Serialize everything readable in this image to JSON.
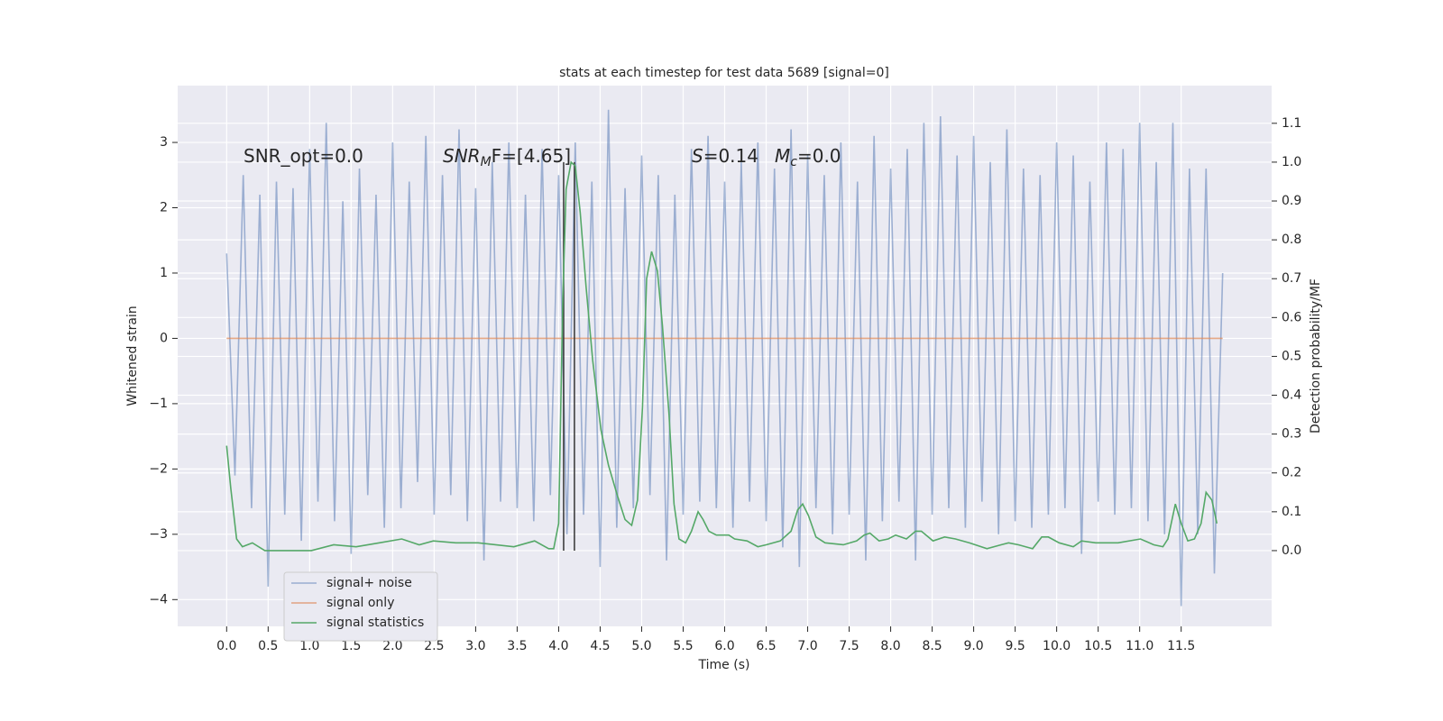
{
  "chart_data": {
    "type": "line",
    "title": "stats at each timestep for test data 5689 [signal=0]",
    "xlabel": "Time (s)",
    "ylabel": "Whitened strain",
    "y2label": "Detection probability/MF",
    "annotations": [
      {
        "text": "SNR_opt=0.0"
      },
      {
        "text": "SNR",
        "sub": "M",
        "rest": "F=[4.65]"
      },
      {
        "text": "S",
        "rest": "=0.14"
      },
      {
        "text": "M",
        "sub": "c",
        "rest": "=0.0"
      }
    ],
    "xlim": [
      -0.59,
      12.59
    ],
    "ylim": [
      -4.41,
      3.87
    ],
    "y2lim": [
      -0.195,
      1.197
    ],
    "xticks": [
      {
        "value": 0,
        "label": "0.0"
      },
      0.5,
      {
        "value": 1,
        "label": "1.0"
      },
      1.5,
      {
        "value": 2,
        "label": "2.0"
      },
      2.5,
      {
        "value": 3,
        "label": "3.0"
      },
      3.5,
      {
        "value": 4,
        "label": "4.0"
      },
      4.5,
      {
        "value": 5,
        "label": "5.0"
      },
      5.5,
      {
        "value": 6,
        "label": "6.0"
      },
      6.5,
      {
        "value": 7,
        "label": "7.0"
      },
      7.5,
      {
        "value": 8,
        "label": "8.0"
      },
      8.5,
      {
        "value": 9,
        "label": "9.0"
      },
      9.5,
      {
        "value": 10,
        "label": "10.0"
      },
      10.5,
      {
        "value": 11,
        "label": "11.0"
      },
      11.5
    ],
    "yticks": [
      {
        "value": -4,
        "label": "−4"
      },
      {
        "value": -3,
        "label": "−3"
      },
      {
        "value": -2,
        "label": "−2"
      },
      {
        "value": -1,
        "label": "−1"
      },
      0,
      1,
      2,
      3
    ],
    "y2ticks": [
      {
        "value": 0,
        "label": "0.0"
      },
      0.1,
      0.2,
      0.3,
      0.4,
      0.5,
      0.6,
      0.7,
      0.8,
      0.9,
      {
        "value": 1,
        "label": "1.0"
      },
      1.1
    ],
    "grid": true,
    "legend": "lower left",
    "vlines": {
      "x": [
        4.06,
        4.19
      ],
      "y": [
        0,
        1
      ],
      "color": "#333333"
    },
    "series": [
      {
        "name": "signal+ noise",
        "color": "#4c72b0",
        "alpha": 0.5,
        "x": [
          0,
          0.1,
          0.2,
          0.3,
          0.4,
          0.5,
          0.6,
          0.7,
          0.8,
          0.9,
          1,
          1.1,
          1.2,
          1.3,
          1.4,
          1.5,
          1.6,
          1.7,
          1.8,
          1.9,
          2,
          2.1,
          2.2,
          2.3,
          2.4,
          2.5,
          2.6,
          2.7,
          2.8,
          2.9,
          3,
          3.1,
          3.2,
          3.3,
          3.4,
          3.5,
          3.6,
          3.7,
          3.8,
          3.9,
          4,
          4.1,
          4.2,
          4.3,
          4.4,
          4.5,
          4.6,
          4.7,
          4.8,
          4.9,
          5,
          5.1,
          5.2,
          5.3,
          5.4,
          5.5,
          5.6,
          5.7,
          5.8,
          5.9,
          6,
          6.1,
          6.2,
          6.3,
          6.4,
          6.5,
          6.6,
          6.7,
          6.8,
          6.9,
          7,
          7.1,
          7.2,
          7.3,
          7.4,
          7.5,
          7.6,
          7.7,
          7.8,
          7.9,
          8,
          8.1,
          8.2,
          8.3,
          8.4,
          8.5,
          8.6,
          8.7,
          8.8,
          8.9,
          9,
          9.1,
          9.2,
          9.3,
          9.4,
          9.5,
          9.6,
          9.7,
          9.8,
          9.9,
          10,
          10.1,
          10.2,
          10.3,
          10.4,
          10.5,
          10.6,
          10.7,
          10.8,
          10.9,
          11,
          11.1,
          11.2,
          11.3,
          11.4,
          11.5,
          11.6,
          11.7,
          11.8,
          11.9,
          12
        ],
        "values": [
          1.3,
          -2.1,
          2.5,
          -2.6,
          2.2,
          -3.8,
          2.4,
          -2.7,
          2.3,
          -3.1,
          2.9,
          -2.5,
          3.3,
          -2.8,
          2.1,
          -3.3,
          2.6,
          -2.4,
          2.2,
          -2.9,
          3.0,
          -2.6,
          2.4,
          -2.2,
          3.1,
          -2.7,
          2.5,
          -2.4,
          3.2,
          -2.8,
          2.3,
          -3.4,
          2.7,
          -2.5,
          3.0,
          -2.6,
          2.2,
          -2.8,
          2.9,
          -2.4,
          2.5,
          -3.0,
          3.0,
          -2.7,
          2.4,
          -3.5,
          3.5,
          -2.9,
          2.3,
          -2.6,
          2.8,
          -2.4,
          2.5,
          -3.4,
          2.2,
          -2.7,
          2.9,
          -2.5,
          3.1,
          -2.6,
          2.4,
          -2.9,
          2.7,
          -2.5,
          3.0,
          -2.8,
          2.6,
          -3.2,
          3.2,
          -3.5,
          2.8,
          -2.6,
          2.5,
          -3.0,
          3.0,
          -2.7,
          2.4,
          -3.4,
          3.1,
          -2.8,
          2.6,
          -2.5,
          2.9,
          -3.4,
          3.3,
          -2.7,
          3.4,
          -2.6,
          2.8,
          -2.9,
          3.1,
          -2.5,
          2.7,
          -3.0,
          3.2,
          -2.8,
          2.6,
          -2.9,
          2.5,
          -2.7,
          3.0,
          -2.6,
          2.8,
          -3.3,
          2.4,
          -2.5,
          3.0,
          -2.7,
          2.9,
          -2.6,
          3.3,
          -2.8,
          2.7,
          -3.0,
          3.3,
          -4.1,
          2.6,
          -3.0,
          2.6,
          -3.6,
          1.0
        ]
      },
      {
        "name": "signal only",
        "color": "#dd8452",
        "alpha": 0.7,
        "x": [
          0,
          12
        ],
        "values": [
          0,
          0
        ]
      },
      {
        "name": "signal statistics",
        "color": "#55a868",
        "alpha": 1,
        "axis": "y2",
        "x": [
          0,
          0.05,
          0.12,
          0.19,
          0.31,
          0.46,
          0.75,
          1.02,
          1.29,
          1.56,
          1.84,
          2.11,
          2.32,
          2.49,
          2.76,
          3.03,
          3.46,
          3.71,
          3.88,
          3.94,
          4.0,
          4.05,
          4.09,
          4.15,
          4.2,
          4.26,
          4.33,
          4.41,
          4.51,
          4.6,
          4.71,
          4.8,
          4.88,
          4.95,
          5.01,
          5.06,
          5.12,
          5.19,
          5.25,
          5.33,
          5.39,
          5.45,
          5.53,
          5.6,
          5.68,
          5.74,
          5.81,
          5.9,
          6.05,
          6.12,
          6.27,
          6.4,
          6.5,
          6.67,
          6.8,
          6.88,
          6.94,
          7.01,
          7.1,
          7.21,
          7.43,
          7.59,
          7.68,
          7.75,
          7.86,
          7.97,
          8.06,
          8.19,
          8.3,
          8.37,
          8.51,
          8.65,
          8.78,
          8.95,
          9.16,
          9.33,
          9.42,
          9.54,
          9.71,
          9.82,
          9.9,
          10.03,
          10.2,
          10.3,
          10.47,
          10.74,
          11.01,
          11.17,
          11.28,
          11.34,
          11.43,
          11.5,
          11.58,
          11.66,
          11.74,
          11.8,
          11.87,
          11.93
        ],
        "values": [
          0.27,
          0.16,
          0.03,
          0.01,
          0.02,
          0.0,
          0.0,
          0.0,
          0.015,
          0.01,
          0.02,
          0.03,
          0.015,
          0.025,
          0.02,
          0.02,
          0.01,
          0.025,
          0.005,
          0.005,
          0.07,
          0.65,
          0.93,
          1.0,
          0.99,
          0.87,
          0.68,
          0.49,
          0.31,
          0.22,
          0.14,
          0.08,
          0.065,
          0.13,
          0.37,
          0.7,
          0.77,
          0.72,
          0.58,
          0.35,
          0.12,
          0.03,
          0.02,
          0.05,
          0.1,
          0.08,
          0.05,
          0.04,
          0.04,
          0.03,
          0.025,
          0.01,
          0.015,
          0.025,
          0.05,
          0.105,
          0.12,
          0.09,
          0.035,
          0.02,
          0.015,
          0.025,
          0.04,
          0.045,
          0.025,
          0.03,
          0.04,
          0.03,
          0.05,
          0.05,
          0.025,
          0.035,
          0.03,
          0.02,
          0.005,
          0.015,
          0.02,
          0.015,
          0.005,
          0.035,
          0.035,
          0.02,
          0.01,
          0.025,
          0.02,
          0.02,
          0.03,
          0.015,
          0.01,
          0.03,
          0.12,
          0.07,
          0.025,
          0.03,
          0.07,
          0.15,
          0.13,
          0.07
        ]
      }
    ]
  }
}
